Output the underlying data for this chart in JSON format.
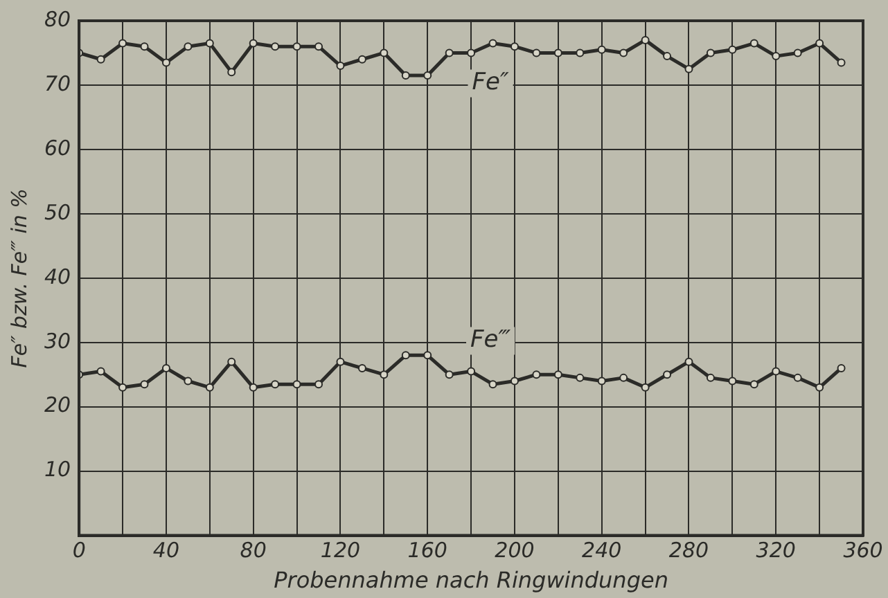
{
  "chart_data": {
    "type": "line",
    "xlabel": "Probennahme nach Ringwindungen",
    "ylabel": "Fe″ bzw. Fe‴ in %",
    "x": [
      0,
      10,
      20,
      30,
      40,
      50,
      60,
      70,
      80,
      90,
      100,
      110,
      120,
      130,
      140,
      150,
      160,
      170,
      180,
      190,
      200,
      210,
      220,
      230,
      240,
      250,
      260,
      270,
      280,
      290,
      300,
      310,
      320,
      330,
      340,
      350
    ],
    "series": [
      {
        "name": "Fe″",
        "color": "#2b2b28",
        "values": [
          75,
          74,
          76.5,
          76,
          73.5,
          76,
          76.5,
          72,
          76.5,
          76,
          76,
          76,
          73,
          74,
          75,
          71.5,
          71.5,
          75,
          75,
          76.5,
          76,
          75,
          75,
          75,
          75.5,
          75,
          77,
          74.5,
          72.5,
          75,
          75.5,
          76.5,
          74.5,
          75,
          76.5,
          73.5
        ]
      },
      {
        "name": "Fe‴",
        "color": "#2b2b28",
        "values": [
          25,
          25.5,
          23,
          23.5,
          26,
          24,
          23,
          27,
          23,
          23.5,
          23.5,
          23.5,
          27,
          26,
          25,
          28,
          28,
          25,
          25.5,
          23.5,
          24,
          25,
          25,
          24.5,
          24,
          24.5,
          23,
          25,
          27,
          24.5,
          24,
          23.5,
          25.5,
          24.5,
          23,
          26
        ]
      }
    ],
    "xlim": [
      0,
      360
    ],
    "xticks": [
      0,
      {
        "value": 20,
        "label": null
      },
      40,
      {
        "value": 60,
        "label": null
      },
      80,
      {
        "value": 100,
        "label": null
      },
      120,
      {
        "value": 140,
        "label": null
      },
      160,
      {
        "value": 180,
        "label": null
      },
      200,
      {
        "value": 220,
        "label": null
      },
      240,
      {
        "value": 260,
        "label": null
      },
      280,
      {
        "value": 300,
        "label": null
      },
      320,
      {
        "value": 340,
        "label": null
      },
      360
    ],
    "ylim": [
      0,
      80
    ],
    "yticks": [
      {
        "value": 0,
        "label": null
      },
      10,
      20,
      30,
      40,
      50,
      60,
      70,
      80
    ],
    "grid": true,
    "legend": false,
    "marker": "circle",
    "line_style": "solid"
  }
}
